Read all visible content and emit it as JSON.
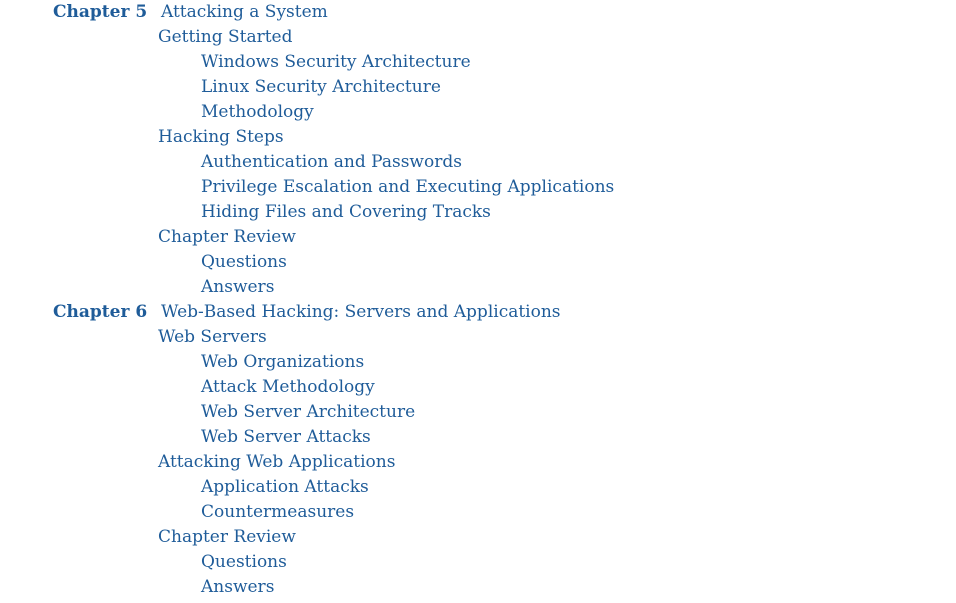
{
  "colors": {
    "link": "#1f5c99",
    "background": "#ffffff"
  },
  "toc": [
    {
      "chapter": "Chapter 5",
      "title": "Attacking a System",
      "sections": [
        {
          "title": "Getting Started",
          "subsections": [
            "Windows Security Architecture",
            "Linux Security Architecture",
            "Methodology"
          ]
        },
        {
          "title": "Hacking Steps",
          "subsections": [
            "Authentication and Passwords",
            "Privilege Escalation and Executing Applications",
            "Hiding Files and Covering Tracks"
          ]
        },
        {
          "title": "Chapter Review",
          "subsections": [
            "Questions",
            "Answers"
          ]
        }
      ]
    },
    {
      "chapter": "Chapter 6",
      "title": "Web-Based Hacking: Servers and Applications",
      "sections": [
        {
          "title": "Web Servers",
          "subsections": [
            "Web Organizations",
            "Attack Methodology",
            "Web Server Architecture",
            "Web Server Attacks"
          ]
        },
        {
          "title": "Attacking Web Applications",
          "subsections": [
            "Application Attacks",
            "Countermeasures"
          ]
        },
        {
          "title": "Chapter Review",
          "subsections": [
            "Questions",
            "Answers"
          ]
        }
      ]
    }
  ]
}
